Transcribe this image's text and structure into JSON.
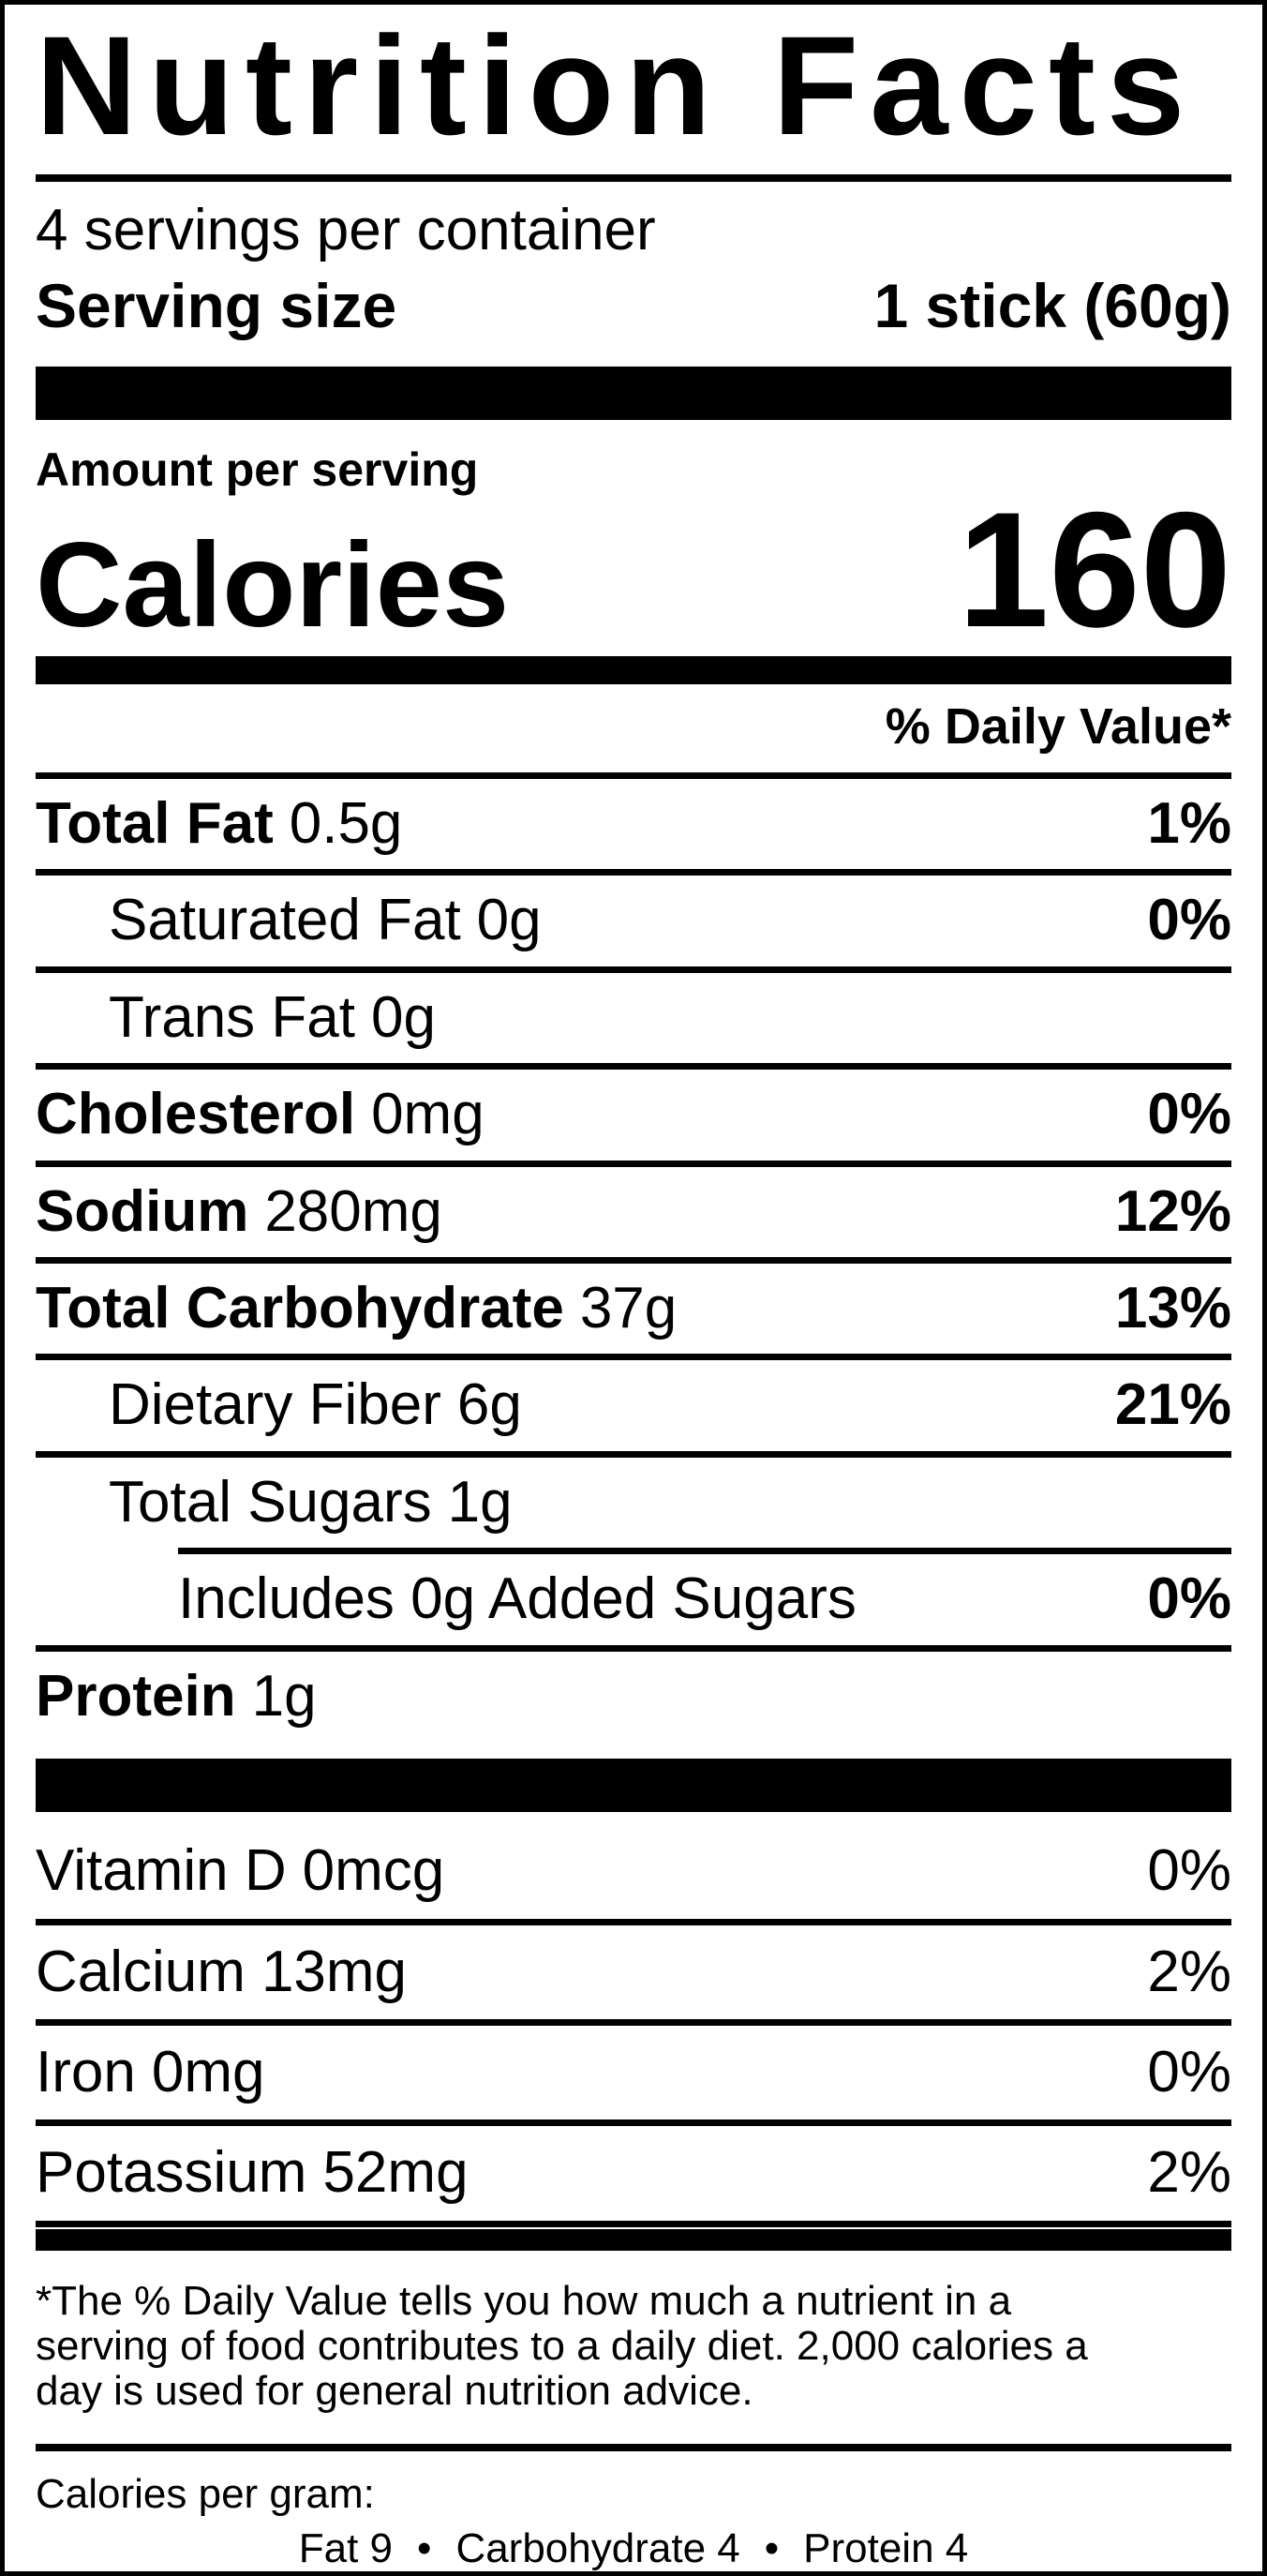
{
  "label": {
    "title": "Nutrition Facts",
    "servings_per_container": "4 servings per container",
    "serving_size": {
      "label": "Serving size",
      "value": "1 stick (60g)"
    },
    "amount_per_serving": "Amount per serving",
    "calories": {
      "label": "Calories",
      "value": "160"
    },
    "daily_value_header": "% Daily Value*",
    "nutrients": [
      {
        "name": "Total Fat",
        "amount": "0.5g",
        "pct": "1%"
      },
      {
        "name": "Saturated Fat",
        "amount": "0g",
        "pct": "0%"
      },
      {
        "name": "Trans Fat",
        "amount": "0g",
        "pct": ""
      },
      {
        "name": "Cholesterol",
        "amount": "0mg",
        "pct": "0%"
      },
      {
        "name": "Sodium",
        "amount": "280mg",
        "pct": "12%"
      },
      {
        "name": "Total Carbohydrate",
        "amount": "37g",
        "pct": "13%"
      },
      {
        "name": "Dietary Fiber",
        "amount": "6g",
        "pct": "21%"
      },
      {
        "name": "Total Sugars",
        "amount": "1g",
        "pct": ""
      },
      {
        "name": "Includes 0g Added Sugars",
        "amount": "",
        "pct": "0%"
      },
      {
        "name": "Protein",
        "amount": "1g",
        "pct": ""
      }
    ],
    "vitamins": [
      {
        "name": "Vitamin D",
        "amount": "0mcg",
        "pct": "0%"
      },
      {
        "name": "Calcium",
        "amount": "13mg",
        "pct": "2%"
      },
      {
        "name": "Iron",
        "amount": "0mg",
        "pct": "0%"
      },
      {
        "name": "Potassium",
        "amount": "52mg",
        "pct": "2%"
      }
    ],
    "footnote_lines": [
      "*The % Daily Value tells you how much a nutrient in a",
      "serving of food contributes to a daily diet. 2,000 calories a",
      "day is used for general nutrition advice."
    ],
    "calories_per_gram": {
      "label": "Calories per gram:",
      "items": [
        "Fat 9",
        "Carbohydrate 4",
        "Protein 4"
      ],
      "separator": "•"
    },
    "colors": {
      "ink": "#000000",
      "paper": "#ffffff"
    }
  }
}
